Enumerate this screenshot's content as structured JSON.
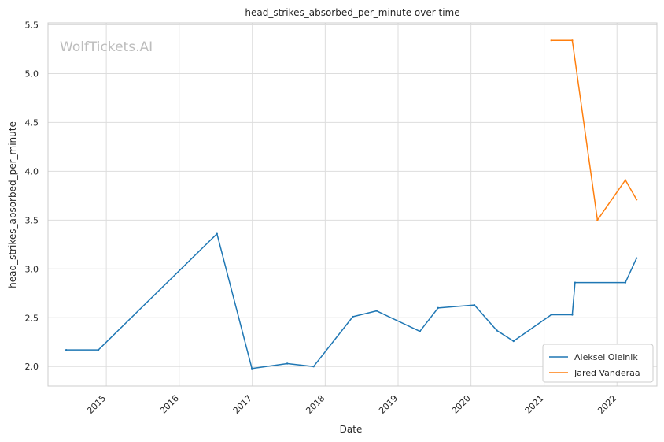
{
  "chart_data": {
    "type": "line",
    "title": "head_strikes_absorbed_per_minute over time",
    "xlabel": "Date",
    "ylabel": "head_strikes_absorbed_per_minute",
    "watermark": "WolfTickets.AI",
    "xlim": [
      "2014-03-15",
      "2022-07-20"
    ],
    "ylim": [
      1.8,
      5.52
    ],
    "grid": true,
    "legend_position": "lower-right",
    "x_ticks": [
      "2015",
      "2016",
      "2017",
      "2018",
      "2019",
      "2020",
      "2021",
      "2022"
    ],
    "y_ticks": [
      "2.0",
      "2.5",
      "3.0",
      "3.5",
      "4.0",
      "4.5",
      "5.0",
      "5.5"
    ],
    "series": [
      {
        "name": "Aleksei Oleinik",
        "color": "#1f77b4",
        "points": [
          {
            "x": "2014-06-14",
            "y": 2.17
          },
          {
            "x": "2014-11-22",
            "y": 2.17
          },
          {
            "x": "2016-07-08",
            "y": 3.36
          },
          {
            "x": "2016-12-30",
            "y": 1.98
          },
          {
            "x": "2017-06-25",
            "y": 2.03
          },
          {
            "x": "2017-11-04",
            "y": 2.0
          },
          {
            "x": "2018-05-19",
            "y": 2.51
          },
          {
            "x": "2018-09-15",
            "y": 2.57
          },
          {
            "x": "2019-04-20",
            "y": 2.36
          },
          {
            "x": "2019-07-20",
            "y": 2.6
          },
          {
            "x": "2020-01-18",
            "y": 2.63
          },
          {
            "x": "2020-05-09",
            "y": 2.37
          },
          {
            "x": "2020-08-01",
            "y": 2.26
          },
          {
            "x": "2021-02-06",
            "y": 2.53
          },
          {
            "x": "2021-05-22",
            "y": 2.53
          },
          {
            "x": "2021-06-05",
            "y": 2.86
          },
          {
            "x": "2022-02-12",
            "y": 2.86
          },
          {
            "x": "2022-04-09",
            "y": 3.11
          }
        ]
      },
      {
        "name": "Jared Vanderaa",
        "color": "#ff7f0e",
        "points": [
          {
            "x": "2021-02-06",
            "y": 5.34
          },
          {
            "x": "2021-05-22",
            "y": 5.34
          },
          {
            "x": "2021-09-25",
            "y": 3.5
          },
          {
            "x": "2022-02-12",
            "y": 3.91
          },
          {
            "x": "2022-04-09",
            "y": 3.71
          }
        ]
      }
    ]
  }
}
